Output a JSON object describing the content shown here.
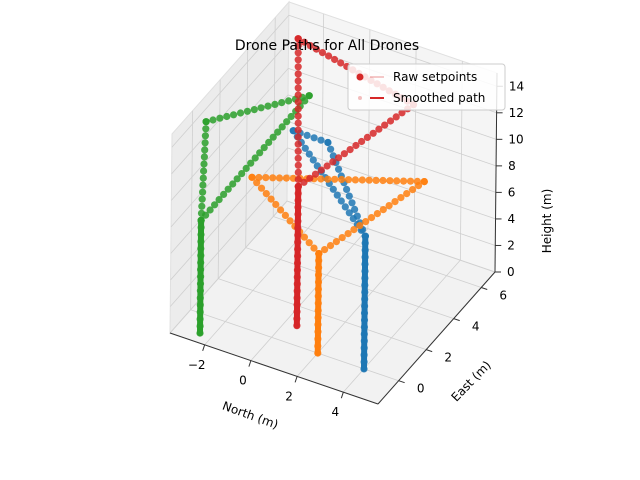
{
  "chart_data": {
    "type": "scatter",
    "projection": "3d",
    "title": "Drone Paths for All Drones",
    "xlabel": "North (m)",
    "ylabel": "East (m)",
    "zlabel": "Height (m)",
    "xticks": [
      -2,
      0,
      2,
      4
    ],
    "yticks": [
      0,
      2,
      4,
      6
    ],
    "zticks": [
      0,
      2,
      4,
      6,
      8,
      10,
      12,
      14
    ],
    "xlim": [
      -3.5,
      5.5
    ],
    "ylim": [
      -1.5,
      7.0
    ],
    "zlim": [
      0,
      15
    ],
    "grid": true,
    "legend": {
      "position": "top-right",
      "entries": [
        {
          "label": "Raw setpoints",
          "marker": "dot",
          "line": "faint"
        },
        {
          "label": "Smoothed path",
          "marker": "faint-dot",
          "line": "solid"
        }
      ],
      "color": "#d62728"
    },
    "series": [
      {
        "color": "#1f77b4",
        "points": [
          [
            4,
            0,
            0
          ],
          [
            4,
            0,
            10
          ],
          [
            -1.5,
            4,
            10
          ],
          [
            0,
            4,
            10
          ],
          [
            4,
            0,
            10
          ]
        ]
      },
      {
        "color": "#ff7f0e",
        "points": [
          [
            2,
            0,
            0
          ],
          [
            2,
            0,
            7.5
          ],
          [
            -1.5,
            1,
            10
          ],
          [
            3,
            6,
            6.5
          ],
          [
            2,
            0,
            7.5
          ]
        ]
      },
      {
        "color": "#2ca02c",
        "points": [
          [
            -2.5,
            -1,
            0
          ],
          [
            -2.5,
            -1,
            8.5
          ],
          [
            -3.5,
            1,
            13
          ],
          [
            -2,
            6,
            10
          ],
          [
            -2.5,
            -1,
            8.5
          ]
        ]
      },
      {
        "color": "#d62728",
        "points": [
          [
            0.5,
            1,
            0
          ],
          [
            0.5,
            1,
            10.5
          ],
          [
            -2.5,
            6,
            14
          ],
          [
            2.5,
            6,
            12
          ],
          [
            0.5,
            1,
            10.5
          ]
        ]
      }
    ]
  }
}
